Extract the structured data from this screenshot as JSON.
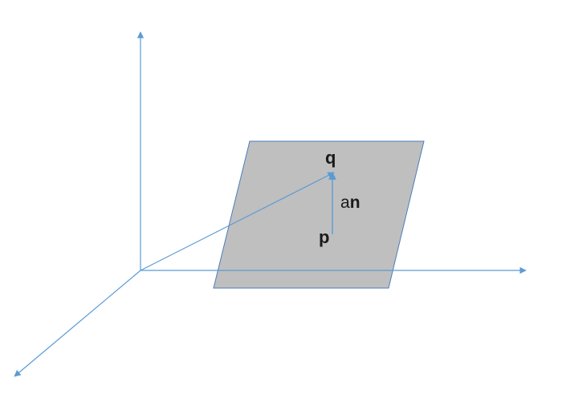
{
  "labels": {
    "q": "q",
    "p": "p",
    "a": "a",
    "n": "n"
  },
  "colors": {
    "axis": "#5b9bd5",
    "plane_fill": "#bfbfbf",
    "plane_stroke": "#4a7ebb",
    "text": "#1a1a1a"
  }
}
